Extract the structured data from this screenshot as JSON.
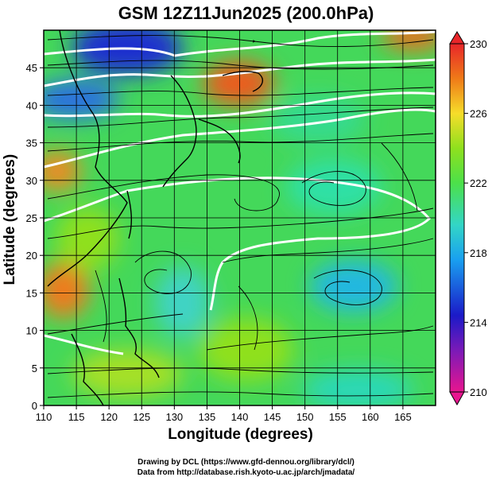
{
  "title": "GSM 12Z11Jun2025 (200.0hPa)",
  "chart_data": {
    "type": "heatmap",
    "title": "GSM 12Z11Jun2025 (200.0hPa)",
    "xlabel": "Longitude (degrees)",
    "ylabel": "Latitude  (degrees)",
    "xlim": [
      110,
      170
    ],
    "ylim": [
      0,
      50
    ],
    "x_ticks": [
      "110",
      "115",
      "120",
      "125",
      "130",
      "135",
      "140",
      "145",
      "150",
      "155",
      "160",
      "165"
    ],
    "y_ticks": [
      "0",
      "5",
      "10",
      "15",
      "20",
      "25",
      "30",
      "35",
      "40",
      "45"
    ],
    "colorbar": {
      "min": 210,
      "max": 230,
      "tick_labels": [
        "210",
        "214",
        "218",
        "222",
        "226",
        "230"
      ],
      "colors": [
        "#e8158f",
        "#1b1ac8",
        "#19a0f0",
        "#33d6c6",
        "#4ce04a",
        "#8fe01e",
        "#f6dd2a",
        "#ef7a18",
        "#e8262a"
      ]
    },
    "features": [
      "temperature shading",
      "white isotherm contours",
      "black streamlines",
      "coastlines",
      "lat/lon grid"
    ]
  },
  "credits": {
    "line1": "Drawing by DCL (https://www.gfd-dennou.org/library/dcl/)",
    "line2": "Data from http://database.rish.kyoto-u.ac.jp/arch/jmadata/"
  }
}
